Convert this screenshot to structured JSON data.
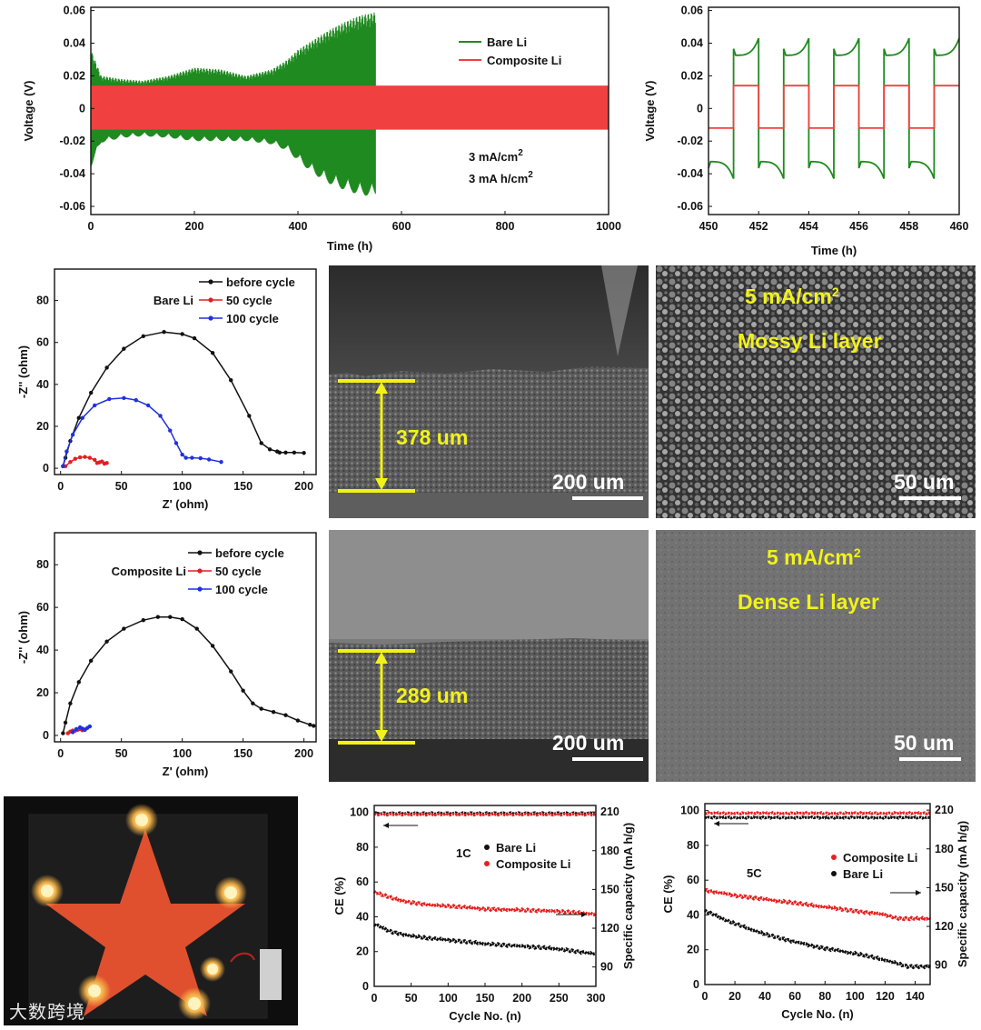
{
  "chart_data": [
    {
      "id": "voltage_long",
      "type": "line",
      "xlabel": "Time (h)",
      "ylabel": "Voltage (V)",
      "xlim": [
        0,
        1000
      ],
      "ylim": [
        -0.065,
        0.062
      ],
      "xticks": [
        "0",
        "200",
        "400",
        "600",
        "800",
        "1000"
      ],
      "yticks": [
        "0.06",
        "0.04",
        "0.02",
        "0",
        "-0.02",
        "-0.04",
        "-0.06"
      ],
      "annotations": [
        "3 mA/cm",
        "3 mA h/cm"
      ],
      "series": [
        {
          "name": "Bare Li",
          "color": "#1f8a1f",
          "envelope_time": [
            0,
            20,
            60,
            100,
            150,
            200,
            250,
            300,
            350,
            380,
            400,
            430,
            460,
            490,
            520,
            550
          ],
          "envelope_max": [
            0.036,
            0.02,
            0.018,
            0.017,
            0.02,
            0.025,
            0.024,
            0.02,
            0.024,
            0.03,
            0.036,
            0.042,
            0.048,
            0.053,
            0.057,
            0.059
          ],
          "envelope_min": [
            -0.036,
            -0.021,
            -0.018,
            -0.017,
            -0.018,
            -0.02,
            -0.02,
            -0.02,
            -0.022,
            -0.026,
            -0.032,
            -0.04,
            -0.046,
            -0.05,
            -0.053,
            -0.054
          ]
        },
        {
          "name": "Composite Li",
          "color": "#f04040",
          "envelope_time": [
            0,
            1000
          ],
          "envelope_max": [
            0.014,
            0.014
          ],
          "envelope_min": [
            -0.013,
            -0.013
          ]
        }
      ]
    },
    {
      "id": "voltage_zoom",
      "type": "line",
      "xlabel": "Time (h)",
      "ylabel": "Voltage (V)",
      "xlim": [
        450,
        460
      ],
      "ylim": [
        -0.065,
        0.062
      ],
      "xticks": [
        "450",
        "452",
        "454",
        "456",
        "458",
        "460"
      ],
      "yticks": [
        "0.06",
        "0.04",
        "0.02",
        "0",
        "-0.02",
        "-0.04",
        "-0.06"
      ],
      "series": [
        {
          "name": "Bare Li",
          "color": "#1f8a1f",
          "charge_peak": 0.043,
          "charge_base": 0.03,
          "discharge_peak": -0.043,
          "discharge_base": -0.03,
          "half_period_h": 1
        },
        {
          "name": "Composite Li",
          "color": "#f04040",
          "charge_level": 0.014,
          "discharge_level": -0.012,
          "half_period_h": 1
        }
      ]
    },
    {
      "id": "eis_bare",
      "type": "line",
      "xlabel": "Z' (ohm)",
      "ylabel": "-Z'' (ohm)",
      "xlim": [
        -5,
        210
      ],
      "ylim": [
        -3,
        95
      ],
      "xticks": [
        "0",
        "50",
        "100",
        "150",
        "200"
      ],
      "yticks": [
        "0",
        "20",
        "40",
        "60",
        "80"
      ],
      "label": "Bare Li",
      "series": [
        {
          "name": "before cycle",
          "color": "#111111",
          "x": [
            2,
            4,
            8,
            15,
            25,
            38,
            52,
            68,
            85,
            100,
            110,
            125,
            140,
            155,
            165,
            172,
            178,
            180,
            185,
            192,
            200
          ],
          "y": [
            1,
            5,
            13,
            24,
            36,
            48,
            57,
            63,
            65,
            64,
            62,
            55,
            42,
            25,
            12,
            9,
            8,
            7.5,
            7.5,
            7.5,
            7.3
          ]
        },
        {
          "name": "50 cycle",
          "color": "#e02020",
          "x": [
            4,
            8,
            12,
            16,
            20,
            24,
            28,
            30,
            32,
            34,
            36,
            38
          ],
          "y": [
            1,
            3,
            4.5,
            5.2,
            5.4,
            5.0,
            4.0,
            2.5,
            2.8,
            3.2,
            2.2,
            2.5
          ]
        },
        {
          "name": "100 cycle",
          "color": "#2030e0",
          "x": [
            2,
            5,
            10,
            18,
            28,
            40,
            52,
            62,
            72,
            82,
            90,
            95,
            100,
            103,
            108,
            115,
            122,
            132
          ],
          "y": [
            1,
            8,
            16,
            24,
            30,
            33,
            33.5,
            32.5,
            30,
            25,
            18,
            12,
            6.5,
            5,
            5,
            4.8,
            4.2,
            3
          ]
        }
      ]
    },
    {
      "id": "eis_composite",
      "type": "line",
      "xlabel": "Z' (ohm)",
      "ylabel": "-Z'' (ohm)",
      "xlim": [
        -5,
        210
      ],
      "ylim": [
        -3,
        95
      ],
      "xticks": [
        "0",
        "50",
        "100",
        "150",
        "200"
      ],
      "yticks": [
        "0",
        "20",
        "40",
        "60",
        "80"
      ],
      "label": "Composite Li",
      "series": [
        {
          "name": "before cycle",
          "color": "#111111",
          "x": [
            2,
            4,
            8,
            15,
            25,
            38,
            52,
            68,
            80,
            90,
            100,
            112,
            125,
            140,
            150,
            158,
            165,
            175,
            185,
            195,
            205,
            208
          ],
          "y": [
            1,
            6,
            15,
            25,
            35,
            44,
            50,
            54,
            55.5,
            55.5,
            54.5,
            50,
            42,
            30,
            21,
            15,
            12.5,
            11,
            9.5,
            7,
            5,
            4.5
          ]
        },
        {
          "name": "50 cycle",
          "color": "#e02020",
          "x": [
            6,
            8,
            10,
            12,
            14,
            16,
            18,
            20
          ],
          "y": [
            1,
            1.8,
            2.3,
            2.2,
            2.6,
            3.0,
            2.4,
            2.8
          ]
        },
        {
          "name": "100 cycle",
          "color": "#2030e0",
          "x": [
            10,
            13,
            16,
            18,
            20,
            22,
            24
          ],
          "y": [
            1.5,
            3,
            3.8,
            3.2,
            2.6,
            3.5,
            4.2
          ]
        }
      ]
    },
    {
      "id": "cycling_1c",
      "type": "scatter",
      "xlabel": "Cycle No. (n)",
      "ylabel": "CE (%)",
      "y2label": "Specific capacity (mA h/g)",
      "xlim": [
        0,
        300
      ],
      "ylim": [
        0,
        104
      ],
      "y2lim": [
        75,
        215
      ],
      "xticks": [
        "0",
        "50",
        "100",
        "150",
        "200",
        "250",
        "300"
      ],
      "yticks": [
        "0",
        "20",
        "40",
        "60",
        "80",
        "100"
      ],
      "y2ticks": [
        "90",
        "120",
        "150",
        "180",
        "210"
      ],
      "rate_label": "1C",
      "series": [
        {
          "name": "Bare Li",
          "color": "#111111",
          "ce": 99.5,
          "capacity_cycle": [
            0,
            25,
            50,
            75,
            100,
            150,
            200,
            250,
            300
          ],
          "capacity": [
            123,
            117,
            114,
            112,
            111,
            108,
            106,
            104,
            100
          ]
        },
        {
          "name": "Composite Li",
          "color": "#e82020",
          "ce": 98.8,
          "capacity_cycle": [
            0,
            25,
            50,
            75,
            100,
            150,
            200,
            250,
            300
          ],
          "capacity": [
            148,
            143,
            140,
            138,
            137,
            135,
            134,
            133,
            131
          ]
        }
      ]
    },
    {
      "id": "cycling_5c",
      "type": "scatter",
      "xlabel": "Cycle No. (n)",
      "ylabel": "CE (%)",
      "y2label": "Specific capacity (mA h/g)",
      "xlim": [
        0,
        150
      ],
      "ylim": [
        0,
        104
      ],
      "y2lim": [
        75,
        215
      ],
      "xticks": [
        "0",
        "20",
        "40",
        "60",
        "80",
        "100",
        "120",
        "140"
      ],
      "yticks": [
        "0",
        "20",
        "40",
        "60",
        "80",
        "100"
      ],
      "y2ticks": [
        "90",
        "120",
        "150",
        "180",
        "210"
      ],
      "rate_label": "5C",
      "series": [
        {
          "name": "Composite Li",
          "color": "#e82020",
          "ce": 98.5,
          "capacity_cycle": [
            0,
            20,
            40,
            60,
            80,
            100,
            120,
            130,
            150
          ],
          "capacity": [
            148,
            144,
            141,
            138,
            135,
            132,
            129,
            126,
            126
          ]
        },
        {
          "name": "Bare Li",
          "color": "#111111",
          "ce": 96,
          "capacity_cycle": [
            0,
            20,
            40,
            60,
            80,
            100,
            120,
            135,
            150
          ],
          "capacity": [
            132,
            122,
            114,
            108,
            103,
            99,
            94,
            89,
            89
          ]
        }
      ]
    }
  ],
  "sem": [
    {
      "thickness": "378 um",
      "scale": "200 um"
    },
    {
      "line1": "5 mA/cm",
      "line2": "Mossy Li layer",
      "scale": "50 um"
    },
    {
      "thickness": "289 um",
      "scale": "200 um"
    },
    {
      "line1": "5 mA/cm",
      "line2": "Dense Li layer",
      "scale": "50 um"
    }
  ],
  "superscript_2": "2",
  "watermark": "大数跨境",
  "colors": {
    "bare": "#1f8a1f",
    "composite": "#f04040",
    "sem_text": "#f2f21a",
    "star": "#e0502e"
  }
}
